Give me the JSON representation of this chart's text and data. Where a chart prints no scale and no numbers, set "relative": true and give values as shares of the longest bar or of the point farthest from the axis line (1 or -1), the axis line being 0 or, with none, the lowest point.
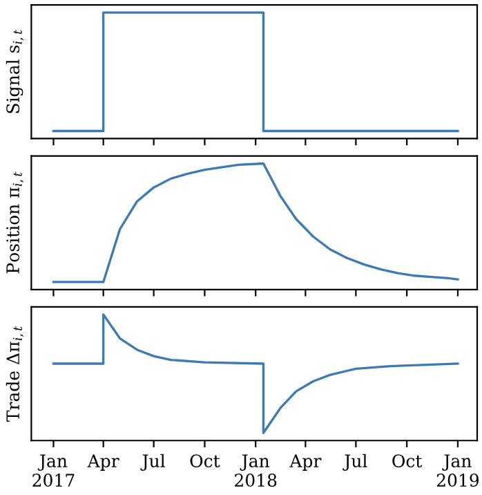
{
  "chart_data": [
    {
      "type": "line",
      "ylabel": "Signal s$_{i,t}$",
      "relative": true,
      "tick_labels": false,
      "xlim": [
        "2016-11-22",
        "2019-02-05"
      ],
      "xticks": [
        {
          "value": "2017-01-01",
          "label": null
        },
        {
          "value": "2017-04-01",
          "label": null
        },
        {
          "value": "2017-07-01",
          "label": null
        },
        {
          "value": "2017-10-01",
          "label": null
        },
        {
          "value": "2018-01-01",
          "label": null
        },
        {
          "value": "2018-04-01",
          "label": null
        },
        {
          "value": "2018-07-01",
          "label": null
        },
        {
          "value": "2018-10-01",
          "label": null
        },
        {
          "value": "2019-01-01",
          "label": null
        }
      ],
      "series": [
        {
          "color": "#3b7ab5",
          "x": [
            "2017-01-01",
            "2017-04-01",
            "2017-04-01",
            "2018-01-15",
            "2018-01-15",
            "2019-01-01"
          ],
          "values": [
            0.06,
            0.06,
            1,
            1,
            0.06,
            0.06
          ]
        }
      ]
    },
    {
      "type": "line",
      "ylabel": "Position π$_{i,t}$",
      "relative": true,
      "tick_labels": false,
      "xlim": [
        "2016-11-22",
        "2019-02-05"
      ],
      "xticks": [
        {
          "value": "2017-01-01",
          "label": null
        },
        {
          "value": "2017-04-01",
          "label": null
        },
        {
          "value": "2017-07-01",
          "label": null
        },
        {
          "value": "2017-10-01",
          "label": null
        },
        {
          "value": "2018-01-01",
          "label": null
        },
        {
          "value": "2018-04-01",
          "label": null
        },
        {
          "value": "2018-07-01",
          "label": null
        },
        {
          "value": "2018-10-01",
          "label": null
        },
        {
          "value": "2019-01-01",
          "label": null
        }
      ],
      "series": [
        {
          "color": "#3b7ab5",
          "x": [
            "2017-01-01",
            "2017-04-01",
            "2017-05-01",
            "2017-06-01",
            "2017-07-01",
            "2017-08-01",
            "2017-09-01",
            "2017-10-01",
            "2017-11-01",
            "2017-12-01",
            "2018-01-15",
            "2018-02-15",
            "2018-03-15",
            "2018-04-15",
            "2018-05-15",
            "2018-06-15",
            "2018-07-15",
            "2018-08-15",
            "2018-09-15",
            "2018-10-15",
            "2018-11-15",
            "2018-12-15",
            "2019-01-01"
          ],
          "values": [
            0.06,
            0.06,
            0.48,
            0.7,
            0.81,
            0.88,
            0.92,
            0.95,
            0.97,
            0.99,
            1,
            0.74,
            0.56,
            0.42,
            0.32,
            0.25,
            0.2,
            0.16,
            0.13,
            0.11,
            0.1,
            0.09,
            0.08
          ]
        }
      ]
    },
    {
      "type": "line",
      "ylabel": "Trade Δπ$_{i,t}$",
      "relative": true,
      "tick_labels": "x",
      "xlim": [
        "2016-11-22",
        "2019-02-05"
      ],
      "xticks": [
        {
          "value": "2017-01-01",
          "label": "Jan\n2017"
        },
        {
          "value": "2017-04-01",
          "label": "Apr"
        },
        {
          "value": "2017-07-01",
          "label": "Jul"
        },
        {
          "value": "2017-10-01",
          "label": "Oct"
        },
        {
          "value": "2018-01-01",
          "label": "Jan\n2018"
        },
        {
          "value": "2018-04-01",
          "label": "Apr"
        },
        {
          "value": "2018-07-01",
          "label": "Jul"
        },
        {
          "value": "2018-10-01",
          "label": "Oct"
        },
        {
          "value": "2019-01-01",
          "label": "Jan\n2019"
        }
      ],
      "series": [
        {
          "color": "#3b7ab5",
          "x": [
            "2017-01-01",
            "2017-04-01",
            "2017-04-01",
            "2017-05-01",
            "2017-06-01",
            "2017-07-01",
            "2017-08-01",
            "2017-10-01",
            "2018-01-15",
            "2018-01-15",
            "2018-02-15",
            "2018-03-15",
            "2018-04-15",
            "2018-05-15",
            "2018-07-01",
            "2018-09-01",
            "2019-01-01"
          ],
          "values": [
            0.61,
            0.61,
            1,
            0.81,
            0.72,
            0.67,
            0.64,
            0.62,
            0.61,
            0.06,
            0.26,
            0.39,
            0.47,
            0.52,
            0.57,
            0.59,
            0.61
          ]
        }
      ]
    }
  ]
}
